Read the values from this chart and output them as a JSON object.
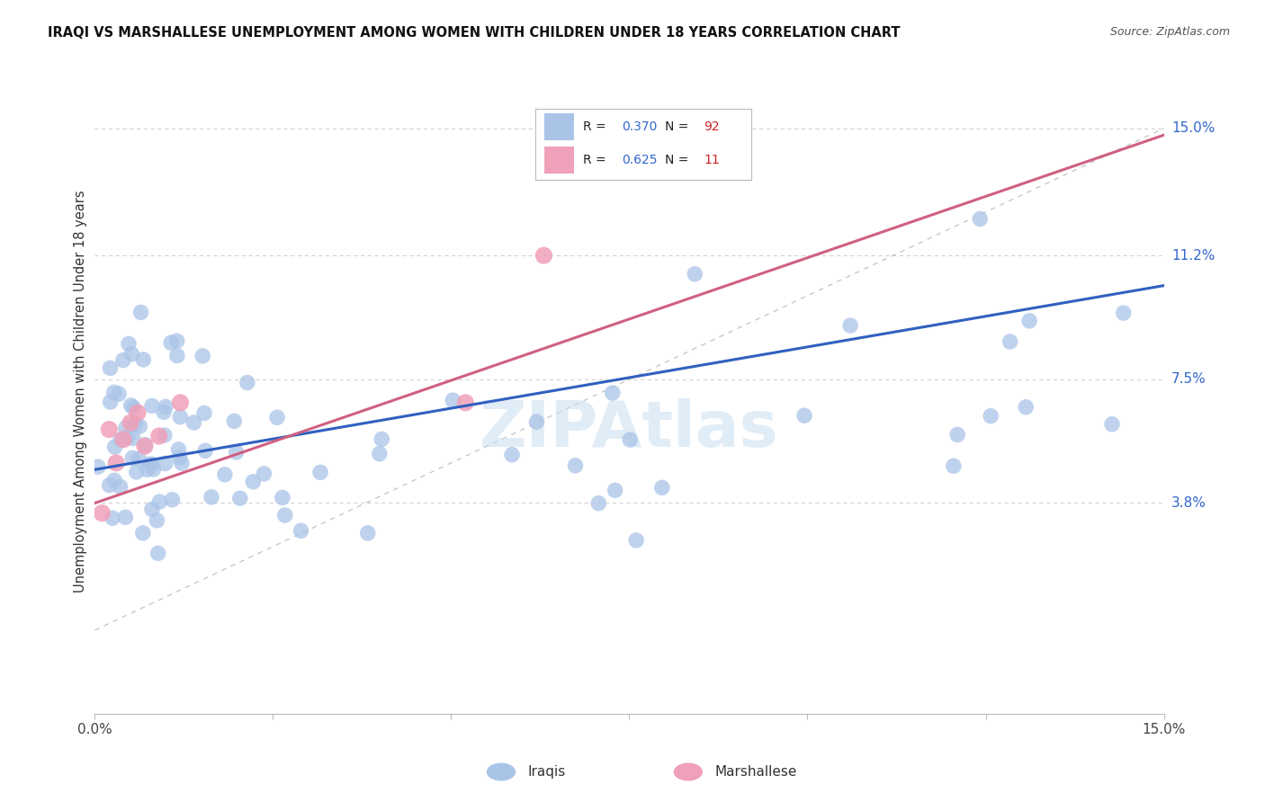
{
  "title": "IRAQI VS MARSHALLESE UNEMPLOYMENT AMONG WOMEN WITH CHILDREN UNDER 18 YEARS CORRELATION CHART",
  "source": "Source: ZipAtlas.com",
  "ylabel": "Unemployment Among Women with Children Under 18 years",
  "ytick_labels": [
    "15.0%",
    "11.2%",
    "7.5%",
    "3.8%"
  ],
  "ytick_values": [
    0.15,
    0.112,
    0.075,
    0.038
  ],
  "xmin": 0.0,
  "xmax": 0.15,
  "ymin": -0.025,
  "ymax": 0.168,
  "iraqis_color": "#aac4e8",
  "marshallese_color": "#f0a0b8",
  "iraqis_line_color": "#3060c0",
  "marshallese_line_color": "#d06080",
  "diagonal_color": "#c8c8c8",
  "watermark": "ZIPAtlas",
  "watermark_color": "#c8ddf0",
  "background_color": "#ffffff",
  "grid_color": "#cccccc",
  "iraqis_line_start_y": 0.048,
  "iraqis_line_end_y": 0.103,
  "marshallese_line_start_y": 0.038,
  "marshallese_line_end_y": 0.148
}
